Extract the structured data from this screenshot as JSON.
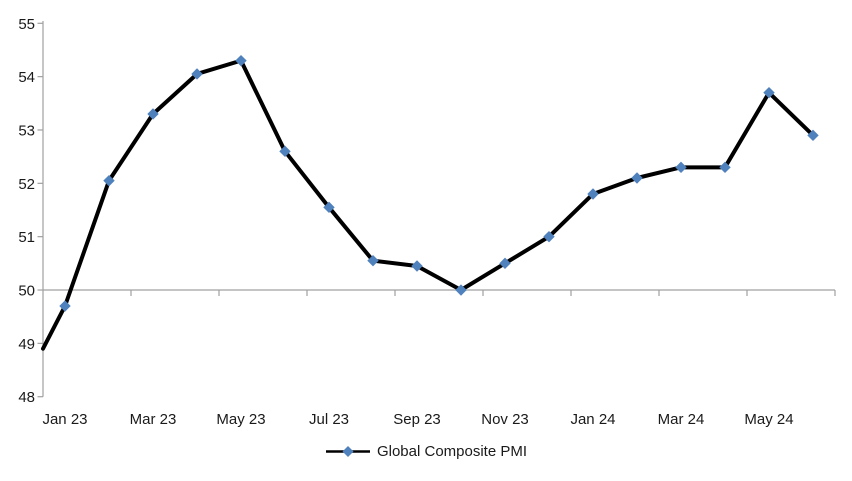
{
  "page": {
    "background": "#ffffff"
  },
  "chart_data": {
    "type": "line",
    "title": "",
    "x": [
      "Jan 23",
      "Feb 23",
      "Mar 23",
      "Apr 23",
      "May 23",
      "Jun 23",
      "Jul 23",
      "Aug 23",
      "Sep 23",
      "Oct 23",
      "Nov 23",
      "Dec 23",
      "Jan 24",
      "Feb 24",
      "Mar 24",
      "Apr 24",
      "May 24",
      "Jun 24"
    ],
    "series": [
      {
        "name": "Global Composite PMI",
        "values": [
          49.7,
          52.05,
          53.3,
          54.05,
          54.3,
          52.6,
          51.55,
          50.55,
          50.45,
          50.0,
          50.5,
          51.0,
          51.8,
          52.1,
          52.3,
          52.3,
          53.7,
          52.9
        ],
        "line_color": "#000000",
        "marker_shape": "diamond",
        "marker_color": "#4F81BD"
      }
    ],
    "left_edge_entry_value": 48.9,
    "x_tick_labels": [
      "Jan 23",
      "Mar 23",
      "May 23",
      "Jul 23",
      "Sep 23",
      "Nov 23",
      "Jan 24",
      "Mar 24",
      "May 24"
    ],
    "y_tick_labels": [
      "48",
      "49",
      "50",
      "51",
      "52",
      "53",
      "54",
      "55"
    ],
    "ylim": [
      48,
      55
    ],
    "x_axis_crosses_at": 50,
    "gridlines": "none",
    "legend": {
      "position": "bottom-center",
      "label": "Global Composite PMI"
    },
    "colors": {
      "axis": "#A0A0A0",
      "text": "#1a1a1a"
    }
  }
}
